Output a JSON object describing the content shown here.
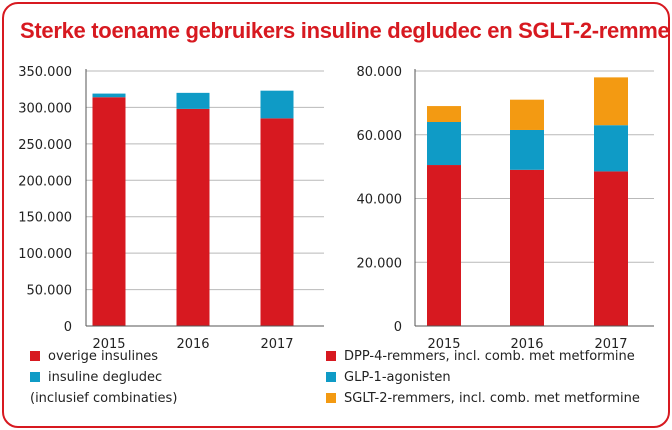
{
  "title": "Sterke toename gebruikers insuline degludec en SGLT-2-remmers",
  "colors": {
    "red": "#d71920",
    "blue": "#0f9bc6",
    "orange": "#f39a12",
    "grid": "#b9b9b9",
    "text": "#222222"
  },
  "chart_data": [
    {
      "type": "bar",
      "stacked": true,
      "categories": [
        "2015",
        "2016",
        "2017"
      ],
      "ylim": [
        0,
        350000
      ],
      "yticks": [
        "0",
        "50.000",
        "100.000",
        "150.000",
        "200.000",
        "250.000",
        "300.000",
        "350.000"
      ],
      "grid": true,
      "series": [
        {
          "name": "overige insulines",
          "color": "#d71920",
          "values": [
            314000,
            298000,
            285000
          ]
        },
        {
          "name": "insuline degludec",
          "color": "#0f9bc6",
          "values": [
            5000,
            22000,
            38000
          ]
        }
      ],
      "legend": {
        "position": "bottom",
        "items": [
          {
            "label": "overige insulines",
            "color": "#d71920"
          },
          {
            "label": "insuline degludec",
            "color": "#0f9bc6"
          }
        ],
        "note": "(inclusief combinaties)"
      }
    },
    {
      "type": "bar",
      "stacked": true,
      "categories": [
        "2015",
        "2016",
        "2017"
      ],
      "ylim": [
        0,
        80000
      ],
      "yticks": [
        "0",
        "20.000",
        "40.000",
        "60.000",
        "80.000"
      ],
      "grid": true,
      "series": [
        {
          "name": "DPP-4-remmers, incl. comb. met metformine",
          "color": "#d71920",
          "values": [
            50500,
            49000,
            48500
          ]
        },
        {
          "name": "GLP-1-agonisten",
          "color": "#0f9bc6",
          "values": [
            13500,
            12500,
            14500
          ]
        },
        {
          "name": "SGLT-2-remmers, incl. comb. met metformine",
          "color": "#f39a12",
          "values": [
            5000,
            9500,
            15000
          ]
        }
      ],
      "legend": {
        "position": "bottom",
        "items": [
          {
            "label": "DPP-4-remmers, incl. comb. met metformine",
            "color": "#d71920"
          },
          {
            "label": "GLP-1-agonisten",
            "color": "#0f9bc6"
          },
          {
            "label": "SGLT-2-remmers, incl. comb. met metformine",
            "color": "#f39a12"
          }
        ]
      }
    }
  ]
}
